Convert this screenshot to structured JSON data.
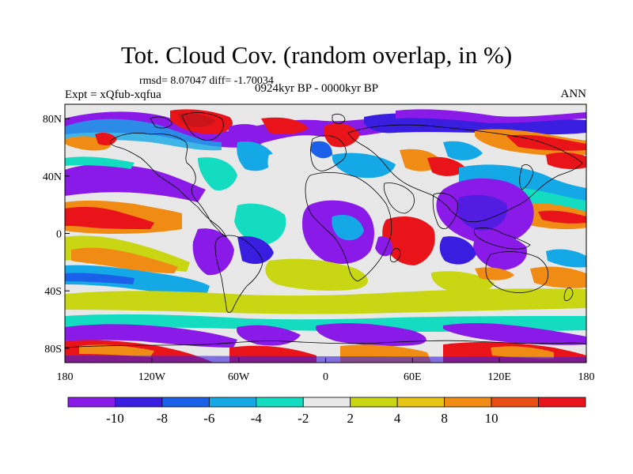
{
  "header": {
    "title": "Tot. Cloud Cov. (random overlap, in %)",
    "stats": "rmsd= 8.07047 diff= -1.70034",
    "experiment": "Expt = xQfub-xqfua",
    "period": "0924kyr BP - 0000kyr BP",
    "season": "ANN"
  },
  "axes": {
    "lon_ticks": [
      "180",
      "120W",
      "60W",
      "0",
      "60E",
      "120E",
      "180"
    ],
    "lat_ticks": [
      "80N",
      "40N",
      "0",
      "40S",
      "80S"
    ]
  },
  "colorbar": {
    "labels": [
      "-10",
      "-8",
      "-6",
      "-4",
      "-2",
      "2",
      "4",
      "8",
      "10"
    ],
    "colors": [
      "#8a1ae8",
      "#3a1ee0",
      "#1a60e8",
      "#14a8e6",
      "#14dcc0",
      "#e8e8e8",
      "#c8d614",
      "#e8c414",
      "#f08c14",
      "#e84e14",
      "#e8141a"
    ]
  },
  "map": {
    "background_color": "#e8e8e8",
    "coastline_color": "#000000"
  }
}
